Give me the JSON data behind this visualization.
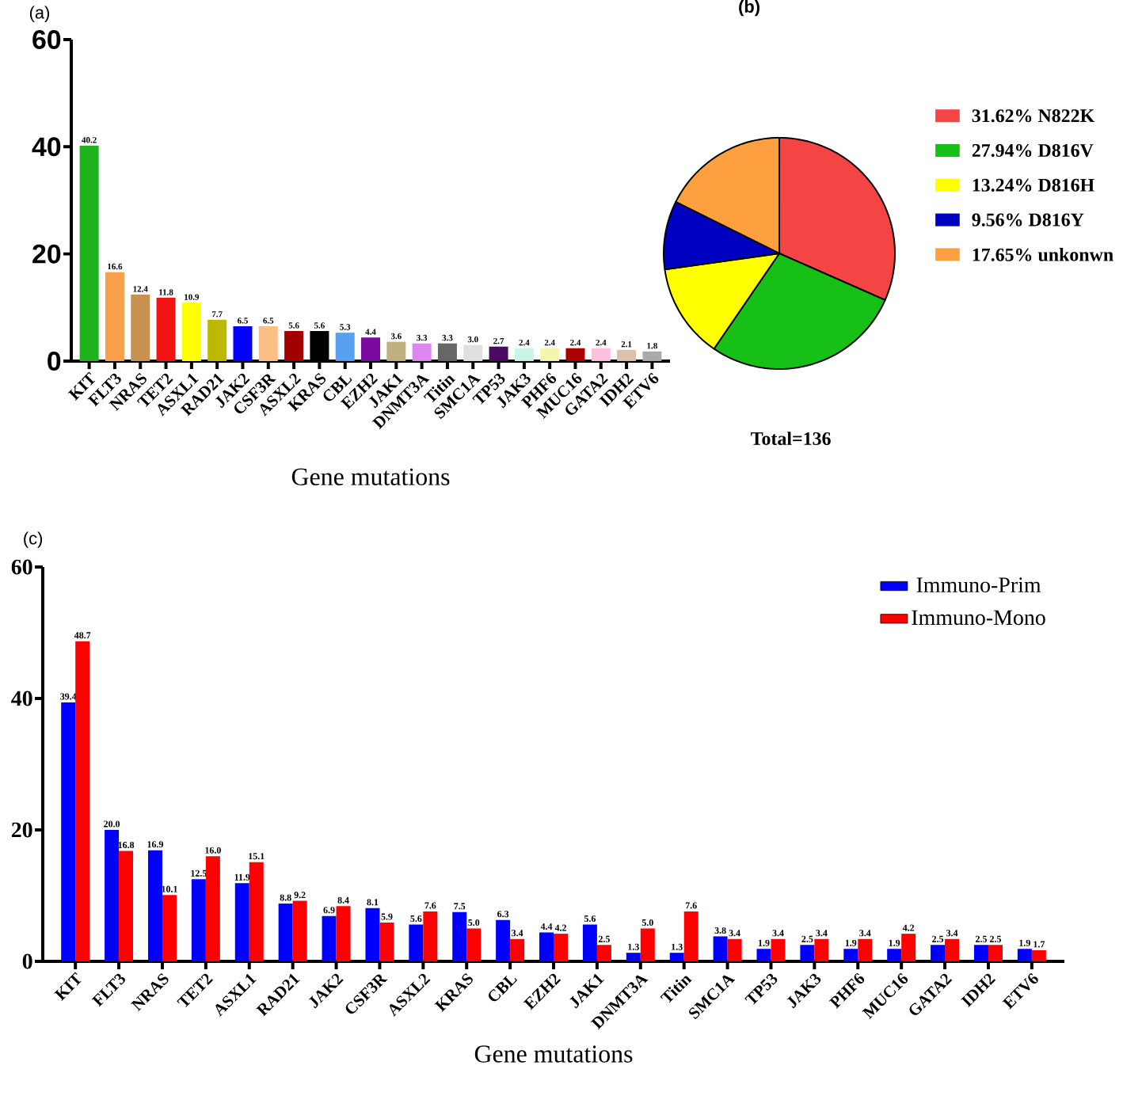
{
  "chart_data": [
    {
      "type": "bar",
      "title": "(a)",
      "xlabel": "Gene mutations",
      "categories": [
        "KIT",
        "FLT3",
        "NRAS",
        "TET2",
        "ASXL1",
        "RAD21",
        "JAK2",
        "CSF3R",
        "ASXL2",
        "KRAS",
        "CBL",
        "EZH2",
        "JAK1",
        "DNMT3A",
        "Titin",
        "SMC1A",
        "TP53",
        "JAK3",
        "PHF6",
        "MUC16",
        "GATA2",
        "IDH2",
        "ETV6"
      ],
      "values": [
        40.2,
        16.6,
        12.4,
        11.8,
        10.9,
        7.7,
        6.5,
        6.5,
        5.6,
        5.6,
        5.3,
        4.4,
        3.6,
        3.3,
        3.3,
        3.0,
        2.7,
        2.4,
        2.4,
        2.4,
        2.4,
        2.1,
        1.8
      ],
      "value_labels": [
        "40.2",
        "16.6",
        "12.4",
        "11.8",
        "10.9",
        "7.7",
        "6.5",
        "6.5",
        "5.6",
        "5.6",
        "5.3",
        "4.4",
        "3.6",
        "3.3",
        "3.3",
        "3.0",
        "2.7",
        "2.4",
        "2.4",
        "2.4",
        "2.4",
        "2.1",
        "1.8"
      ],
      "colors": [
        "#1db31d",
        "#f9a14a",
        "#c8914f",
        "#f21414",
        "#ffff00",
        "#bdb800",
        "#0000ff",
        "#fbbf86",
        "#a00000",
        "#000000",
        "#5aa0f0",
        "#7a0aa0",
        "#c0b080",
        "#dd88f0",
        "#666666",
        "#e0e0e0",
        "#4a0a60",
        "#c8f5e8",
        "#f5f5b0",
        "#aa0000",
        "#ffc0dd",
        "#dcc0aa",
        "#aaaaaa"
      ],
      "ylim": [
        0,
        60
      ],
      "yticks": [
        0,
        20,
        40,
        60
      ]
    },
    {
      "type": "pie",
      "title": "(b)",
      "categories": [
        "31.62% N822K",
        "27.94% D816V",
        "13.24% D816H",
        "9.56% D816Y",
        "17.65% unkonwn"
      ],
      "values": [
        31.62,
        27.94,
        13.24,
        9.56,
        17.65
      ],
      "colors": [
        "#f44444",
        "#16c016",
        "#ffff00",
        "#0000c0",
        "#ffa040"
      ],
      "legend": "right",
      "annotations": [
        "Total=136"
      ]
    },
    {
      "type": "bar",
      "title": "(c)",
      "xlabel": "Gene mutations",
      "categories": [
        "KIT",
        "FLT3",
        "NRAS",
        "TET2",
        "ASXL1",
        "RAD21",
        "JAK2",
        "CSF3R",
        "ASXL2",
        "KRAS",
        "CBL",
        "EZH2",
        "JAK1",
        "DNMT3A",
        "Titin",
        "SMC1A",
        "TP53",
        "JAK3",
        "PHF6",
        "MUC16",
        "GATA2",
        "IDH2",
        "ETV6"
      ],
      "series": [
        {
          "name": "Immuno-Prim",
          "color": "#0000ff",
          "values": [
            39.4,
            20.0,
            16.9,
            12.5,
            11.9,
            8.8,
            6.9,
            8.1,
            5.6,
            7.5,
            6.3,
            4.4,
            5.6,
            1.3,
            1.3,
            3.8,
            1.9,
            2.5,
            1.9,
            1.9,
            2.5,
            2.5,
            1.9
          ],
          "value_labels": [
            "39.4",
            "20.0",
            "16.9",
            "12.5",
            "11.9",
            "8.8",
            "6.9",
            "8.1",
            "5.6",
            "7.5",
            "6.3",
            "4.4",
            "5.6",
            "1.3",
            "1.3",
            "3.8",
            "1.9",
            "2.5",
            "1.9",
            "1.9",
            "2.5",
            "2.5",
            "1.9"
          ]
        },
        {
          "name": "Immuno-Mono",
          "color": "#ff0000",
          "values": [
            48.7,
            16.8,
            10.1,
            16.0,
            15.1,
            9.2,
            8.4,
            5.9,
            7.6,
            5.0,
            3.4,
            4.2,
            2.5,
            5.0,
            7.6,
            3.4,
            3.4,
            3.4,
            3.4,
            4.2,
            3.4,
            2.5,
            1.7
          ],
          "value_labels": [
            "48.7",
            "16.8",
            "10.1",
            "16.0",
            "15.1",
            "9.2",
            "8.4",
            "5.9",
            "7.6",
            "5.0",
            "3.4",
            "4.2",
            "2.5",
            "5.0",
            "7.6",
            "3.4",
            "3.4",
            "3.4",
            "3.4",
            "4.2",
            "3.4",
            "2.5",
            "1.7"
          ]
        }
      ],
      "ylim": [
        0,
        60
      ],
      "yticks": [
        0,
        20,
        40,
        60
      ],
      "legend": "top right"
    }
  ]
}
